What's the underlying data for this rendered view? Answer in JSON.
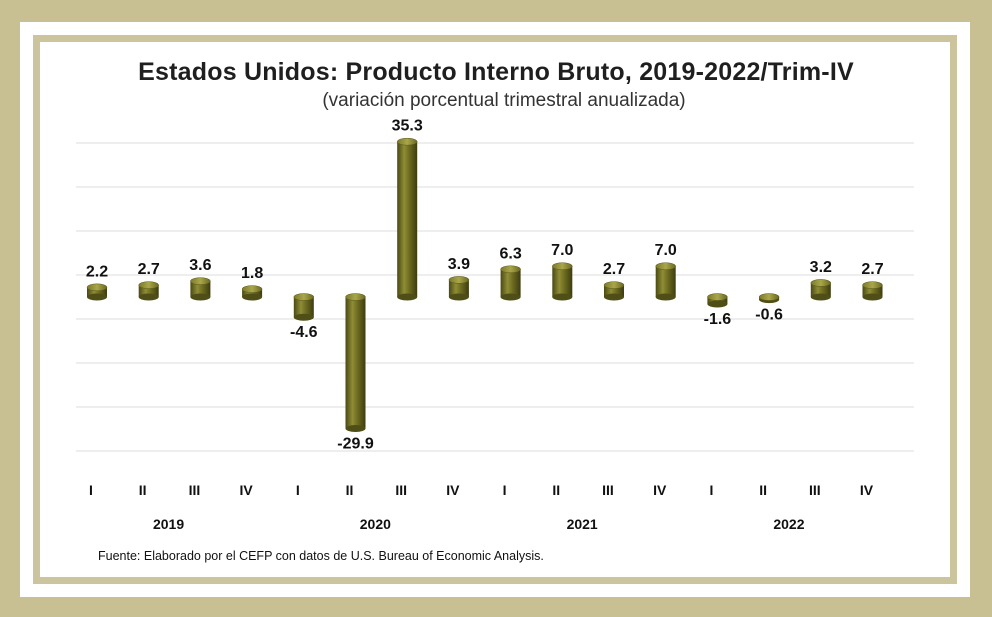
{
  "chart_data": {
    "type": "bar",
    "title": "Estados Unidos: Producto Interno Bruto, 2019-2022/Trim-IV",
    "subtitle": "(variación porcentual trimestral anualizada)",
    "categories": [
      "I",
      "II",
      "III",
      "IV",
      "I",
      "II",
      "III",
      "IV",
      "I",
      "II",
      "III",
      "IV",
      "I",
      "II",
      "III",
      "IV"
    ],
    "years": [
      {
        "label": "2019",
        "quarters": [
          0,
          1,
          2,
          3
        ]
      },
      {
        "label": "2020",
        "quarters": [
          4,
          5,
          6,
          7
        ]
      },
      {
        "label": "2021",
        "quarters": [
          8,
          9,
          10,
          11
        ]
      },
      {
        "label": "2022",
        "quarters": [
          12,
          13,
          14,
          15
        ]
      }
    ],
    "values": [
      2.2,
      2.7,
      3.6,
      1.8,
      -4.6,
      -29.9,
      35.3,
      3.9,
      6.3,
      7.0,
      2.7,
      7.0,
      -1.6,
      -0.6,
      3.2,
      2.7
    ],
    "value_labels": [
      "2.2",
      "2.7",
      "3.6",
      "1.8",
      "-4.6",
      "-29.9",
      "35.3",
      "3.9",
      "6.3",
      "7.0",
      "2.7",
      "7.0",
      "-1.6",
      "-0.6",
      "3.2",
      "2.7"
    ],
    "ylim": [
      -35,
      40
    ],
    "grid": true,
    "bar_style": "cylinder",
    "bar_color": "#6b6a1f"
  },
  "source": "Fuente: Elaborado por el CEFP con datos de U.S. Bureau of Economic Analysis."
}
